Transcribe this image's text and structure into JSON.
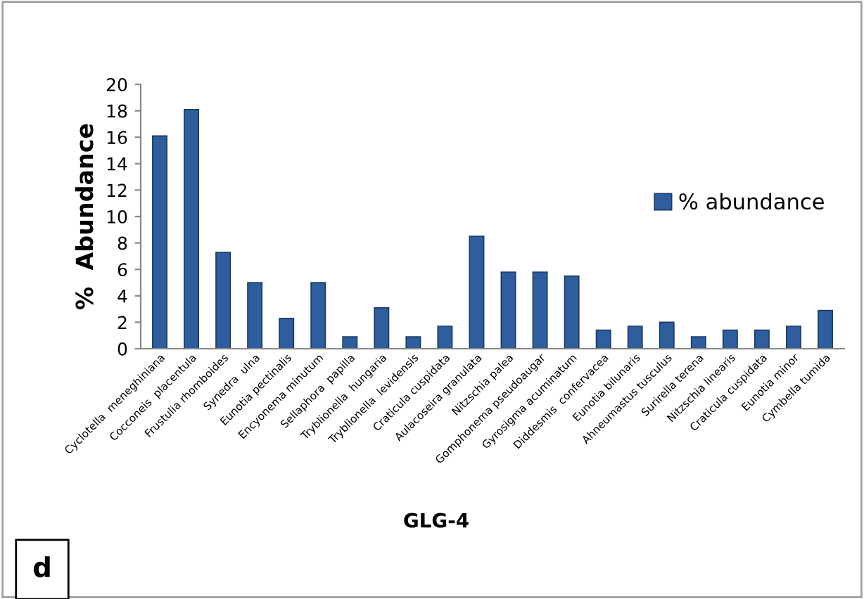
{
  "chart_data": {
    "type": "bar",
    "xlabel": "GLG-4",
    "ylabel": "%  Abundance",
    "categories": [
      "Cyclotella  meneghiniana",
      "Cocconeis  placentula",
      "Frustulia rhomboides",
      "Synedra  ulna",
      "Eunotia pectinalis",
      "Encyonema minutum",
      "Sellaphora  papilla",
      "Tryblionella  hungaria",
      "Tryblionella  levidensis",
      "Craticula cuspidata",
      "Aulacoseira granulata",
      "Nitzschia palea",
      "Gomphonema pseudoaugar",
      "Gyrosigma acuminatum",
      "Diddesmis  confervacea",
      "Eunotia bilunaris",
      "Ahneumastus tusculus",
      "Surirella terena",
      "Nitzschia linearis",
      "Craticula cuspidata",
      "Eunotia minor",
      "Cymbella tumida"
    ],
    "series": [
      {
        "name": "% abundance",
        "color": "#2e5e9e",
        "values": [
          16.1,
          18.1,
          7.3,
          5.0,
          2.3,
          5.0,
          0.9,
          3.1,
          0.9,
          1.7,
          8.5,
          5.8,
          5.8,
          5.5,
          1.4,
          1.7,
          2.0,
          0.9,
          1.4,
          1.4,
          1.7,
          2.9
        ]
      }
    ],
    "ylim": [
      0,
      20
    ],
    "yticks": [
      0,
      2,
      4,
      6,
      8,
      10,
      12,
      14,
      16,
      18,
      20
    ],
    "grid": false,
    "legend": "right",
    "annotations": [
      "d"
    ]
  }
}
